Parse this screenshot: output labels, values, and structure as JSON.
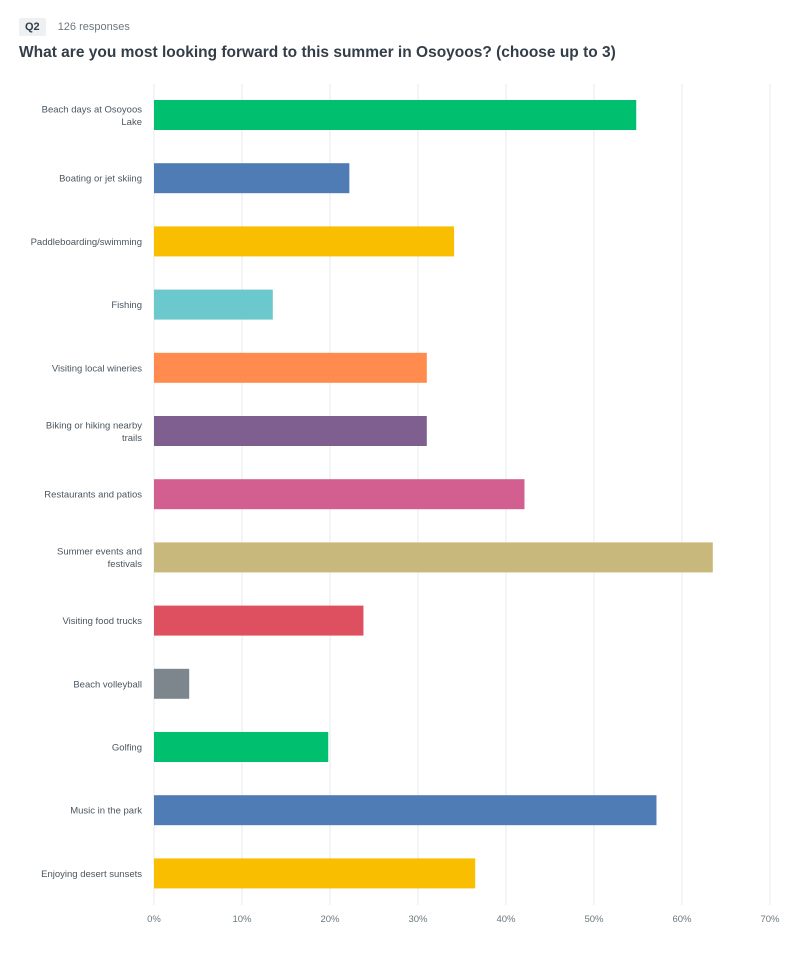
{
  "question": {
    "badge": "Q2",
    "responses": "126 responses",
    "title": "What are you most looking forward to this summer in Osoyoos? (choose up to 3)"
  },
  "chart_data": {
    "type": "bar",
    "orientation": "horizontal",
    "categories": [
      "Beach days at Osoyoos Lake",
      "Boating or jet skiing",
      "Paddleboarding/swimming",
      "Fishing",
      "Visiting local wineries",
      "Biking or hiking nearby trails",
      "Restaurants and patios",
      "Summer events and festivals",
      "Visiting food trucks",
      "Beach volleyball",
      "Golfing",
      "Music in the park",
      "Enjoying desert sunsets"
    ],
    "values": [
      54.8,
      22.2,
      34.1,
      13.5,
      31.0,
      31.0,
      42.1,
      63.5,
      23.8,
      4.0,
      19.8,
      57.1,
      36.5
    ],
    "colors": [
      "#00bf6f",
      "#507cb6",
      "#f9be00",
      "#6bc8cd",
      "#ff8b4f",
      "#7f5f90",
      "#d25f90",
      "#c9b87b",
      "#de4f5f",
      "#7d868c",
      "#00bf6f",
      "#507cb6",
      "#f9be00"
    ],
    "xlim": [
      0,
      70
    ],
    "ticks": [
      0,
      10,
      20,
      30,
      40,
      50,
      60,
      70
    ],
    "tick_labels": [
      "0%",
      "10%",
      "20%",
      "30%",
      "40%",
      "50%",
      "60%",
      "70%"
    ],
    "grid": true,
    "gridline_color": "#e6e9eb"
  }
}
